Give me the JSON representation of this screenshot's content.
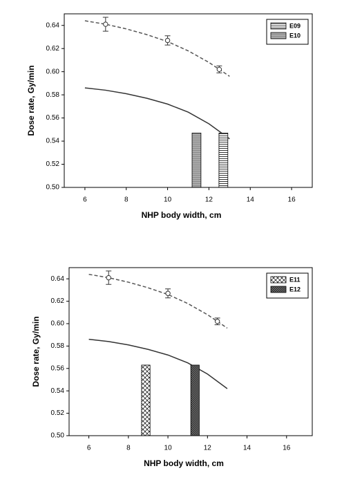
{
  "chart_data": [
    {
      "type": "combo",
      "xlabel": "NHP body width, cm",
      "ylabel": "Dose rate, Gy/min",
      "xlim": [
        5,
        17
      ],
      "xticks": [
        6,
        8,
        10,
        12,
        14,
        16
      ],
      "ylim": [
        0.5,
        0.65
      ],
      "yticks": [
        {
          "value": 0.5,
          "label": "0.50"
        },
        0.52,
        0.54,
        0.56,
        0.58,
        {
          "value": 0.6,
          "label": "0.60"
        },
        0.62,
        0.64
      ],
      "legend": "upper right",
      "series": [
        {
          "kind": "line",
          "dash": true,
          "color": "#555555",
          "x": [
            6,
            7,
            8,
            9,
            10,
            11,
            12,
            13
          ],
          "values": [
            0.644,
            0.641,
            0.637,
            0.632,
            0.626,
            0.618,
            0.608,
            0.596
          ]
        },
        {
          "kind": "line",
          "dash": false,
          "color": "#333333",
          "x": [
            6,
            7,
            8,
            9,
            10,
            11,
            12,
            13
          ],
          "values": [
            0.586,
            0.584,
            0.581,
            0.577,
            0.572,
            0.565,
            0.555,
            0.542
          ]
        },
        {
          "kind": "points",
          "color": "#333333",
          "x": [
            7,
            10,
            12.5
          ],
          "values": [
            0.641,
            0.627,
            0.602
          ],
          "errors": [
            0.006,
            0.004,
            0.003
          ]
        },
        {
          "kind": "bar",
          "name": "E09",
          "pattern": "horizontal",
          "x": [
            12.7
          ],
          "values": [
            0.547
          ]
        },
        {
          "kind": "bar",
          "name": "E10",
          "pattern": "gray",
          "x": [
            11.4
          ],
          "values": [
            0.547
          ]
        }
      ]
    },
    {
      "type": "combo",
      "xlabel": "NHP body width, cm",
      "ylabel": "Dose rate, Gy/min",
      "xlim": [
        5,
        17.3
      ],
      "xticks": [
        6,
        8,
        10,
        12,
        14,
        16
      ],
      "ylim": [
        0.5,
        0.65
      ],
      "yticks": [
        {
          "value": 0.5,
          "label": "0.50"
        },
        0.52,
        0.54,
        0.56,
        0.58,
        {
          "value": 0.6,
          "label": "0.60"
        },
        0.62,
        0.64
      ],
      "legend": "upper right",
      "series": [
        {
          "kind": "line",
          "dash": true,
          "color": "#555555",
          "x": [
            6,
            7,
            8,
            9,
            10,
            11,
            12,
            13
          ],
          "values": [
            0.644,
            0.641,
            0.637,
            0.632,
            0.626,
            0.618,
            0.608,
            0.596
          ]
        },
        {
          "kind": "line",
          "dash": false,
          "color": "#333333",
          "x": [
            6,
            7,
            8,
            9,
            10,
            11,
            12,
            13
          ],
          "values": [
            0.586,
            0.584,
            0.581,
            0.577,
            0.572,
            0.565,
            0.555,
            0.542
          ]
        },
        {
          "kind": "points",
          "color": "#333333",
          "x": [
            7,
            10,
            12.5
          ],
          "values": [
            0.641,
            0.627,
            0.602
          ],
          "errors": [
            0.006,
            0.004,
            0.003
          ]
        },
        {
          "kind": "bar",
          "name": "E11",
          "pattern": "crosshatch",
          "x": [
            8.88
          ],
          "values": [
            0.563
          ]
        },
        {
          "kind": "bar",
          "name": "E12",
          "pattern": "dense",
          "x": [
            11.37
          ],
          "values": [
            0.563
          ]
        }
      ]
    }
  ]
}
